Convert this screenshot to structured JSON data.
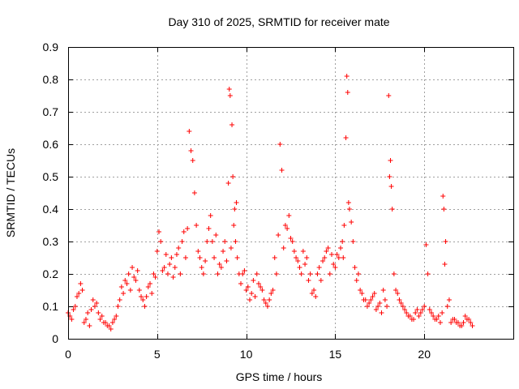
{
  "chart_data": {
    "type": "scatter",
    "title": "Day 310 of 2025, SRMTID for receiver mate",
    "xlabel": "GPS time / hours",
    "ylabel": "SRMTID / TECUs",
    "xlim": [
      0,
      25
    ],
    "ylim": [
      0,
      0.9
    ],
    "xticks": [
      0,
      5,
      10,
      15,
      20
    ],
    "xtick_labels": [
      "0",
      "5",
      "10",
      "15",
      "20"
    ],
    "yticks": [
      0,
      0.1,
      0.2,
      0.3,
      0.4,
      0.5,
      0.6,
      0.7,
      0.8,
      0.9
    ],
    "ytick_labels": [
      "0",
      "0.1",
      "0.2",
      "0.3",
      "0.4",
      "0.5",
      "0.6",
      "0.7",
      "0.8",
      "0.9"
    ],
    "grid": true,
    "marker": "+",
    "color": "#ff0000",
    "series": [
      {
        "name": "SRMTID",
        "x": [
          0.0,
          0.2,
          0.4,
          0.6,
          0.7,
          0.9,
          1.0,
          1.2,
          1.4,
          1.5,
          1.7,
          1.9,
          2.0,
          2.2,
          2.4,
          2.6,
          2.8,
          3.0,
          3.2,
          3.4,
          3.6,
          3.8,
          4.0,
          4.2,
          4.4,
          4.6,
          4.8,
          5.0,
          5.1,
          5.2,
          5.4,
          5.6,
          5.8,
          6.0,
          6.2,
          6.4,
          6.6,
          6.8,
          6.9,
          7.0,
          7.1,
          7.2,
          7.4,
          7.6,
          7.8,
          8.0,
          8.2,
          8.4,
          8.6,
          8.8,
          9.0,
          9.05,
          9.1,
          9.2,
          9.3,
          9.4,
          9.5,
          9.6,
          9.8,
          10.0,
          10.2,
          10.4,
          10.6,
          10.8,
          11.0,
          11.2,
          11.4,
          11.6,
          11.8,
          11.9,
          12.0,
          12.2,
          12.4,
          12.6,
          12.8,
          13.0,
          13.2,
          13.4,
          13.6,
          13.8,
          14.0,
          14.2,
          14.4,
          14.6,
          14.8,
          15.0,
          15.2,
          15.4,
          15.5,
          15.6,
          15.65,
          15.7,
          15.8,
          16.0,
          16.2,
          16.4,
          16.6,
          16.8,
          17.0,
          17.2,
          17.4,
          17.6,
          17.8,
          17.9,
          18.0,
          18.1,
          18.2,
          18.4,
          18.6,
          18.8,
          19.0,
          19.2,
          19.4,
          19.6,
          19.8,
          20.0,
          20.1,
          20.2,
          20.4,
          20.6,
          20.8,
          21.0,
          21.05,
          21.1,
          21.2,
          21.4,
          21.6,
          21.8,
          22.0,
          22.2,
          22.4,
          22.6,
          22.7,
          0.1,
          0.3,
          0.5,
          0.8,
          1.1,
          1.3,
          1.6,
          1.8,
          2.1,
          2.3,
          2.5,
          2.7,
          2.9,
          3.1,
          3.3,
          3.5,
          3.7,
          3.9,
          4.1,
          4.3,
          4.5,
          4.7,
          4.9,
          5.3,
          5.5,
          5.7,
          5.9,
          6.1,
          6.3,
          6.5,
          6.7,
          7.3,
          7.5,
          7.7,
          7.9,
          8.1,
          8.3,
          8.5,
          8.7,
          8.9,
          9.15,
          9.25,
          9.35,
          9.45,
          9.7,
          9.9,
          10.1,
          10.3,
          10.5,
          10.7,
          10.9,
          11.1,
          11.3,
          11.5,
          11.7,
          12.1,
          12.3,
          12.5,
          12.7,
          12.9,
          13.1,
          13.3,
          13.5,
          13.7,
          13.9,
          14.1,
          14.3,
          14.5,
          14.7,
          14.9,
          15.1,
          15.3,
          15.45,
          15.75,
          15.9,
          16.1,
          16.3,
          16.5,
          16.7,
          16.9,
          17.1,
          17.3,
          17.5,
          17.7,
          18.05,
          18.15,
          18.3,
          18.5,
          18.7,
          18.9,
          19.1,
          19.3,
          19.5,
          19.7,
          19.9,
          20.3,
          20.5,
          20.7,
          20.9,
          21.15,
          21.3,
          21.5,
          21.7,
          21.9,
          22.1,
          22.3,
          22.5
        ],
        "y": [
          0.08,
          0.06,
          0.1,
          0.14,
          0.17,
          0.05,
          0.06,
          0.04,
          0.12,
          0.1,
          0.08,
          0.07,
          0.05,
          0.04,
          0.03,
          0.06,
          0.1,
          0.16,
          0.18,
          0.2,
          0.22,
          0.18,
          0.15,
          0.12,
          0.13,
          0.17,
          0.2,
          0.27,
          0.33,
          0.3,
          0.22,
          0.2,
          0.25,
          0.22,
          0.28,
          0.3,
          0.25,
          0.64,
          0.58,
          0.55,
          0.45,
          0.35,
          0.25,
          0.2,
          0.3,
          0.38,
          0.25,
          0.2,
          0.22,
          0.3,
          0.48,
          0.77,
          0.75,
          0.66,
          0.35,
          0.3,
          0.25,
          0.2,
          0.2,
          0.15,
          0.12,
          0.18,
          0.2,
          0.16,
          0.12,
          0.1,
          0.14,
          0.25,
          0.32,
          0.6,
          0.52,
          0.35,
          0.38,
          0.3,
          0.25,
          0.22,
          0.27,
          0.25,
          0.2,
          0.15,
          0.2,
          0.18,
          0.25,
          0.28,
          0.26,
          0.22,
          0.25,
          0.3,
          0.35,
          0.62,
          0.81,
          0.76,
          0.4,
          0.3,
          0.18,
          0.15,
          0.12,
          0.1,
          0.12,
          0.14,
          0.1,
          0.08,
          0.12,
          0.1,
          0.75,
          0.55,
          0.4,
          0.15,
          0.12,
          0.1,
          0.08,
          0.07,
          0.06,
          0.09,
          0.08,
          0.1,
          0.29,
          0.2,
          0.08,
          0.06,
          0.07,
          0.08,
          0.44,
          0.4,
          0.3,
          0.12,
          0.06,
          0.05,
          0.04,
          0.05,
          0.06,
          0.05,
          0.04,
          0.07,
          0.09,
          0.13,
          0.15,
          0.08,
          0.09,
          0.11,
          0.06,
          0.05,
          0.04,
          0.05,
          0.07,
          0.12,
          0.14,
          0.17,
          0.15,
          0.19,
          0.21,
          0.13,
          0.1,
          0.16,
          0.14,
          0.19,
          0.21,
          0.26,
          0.23,
          0.19,
          0.26,
          0.2,
          0.33,
          0.34,
          0.27,
          0.22,
          0.24,
          0.34,
          0.3,
          0.32,
          0.23,
          0.27,
          0.24,
          0.28,
          0.5,
          0.4,
          0.42,
          0.17,
          0.21,
          0.16,
          0.14,
          0.13,
          0.17,
          0.15,
          0.11,
          0.12,
          0.15,
          0.2,
          0.28,
          0.34,
          0.31,
          0.27,
          0.24,
          0.2,
          0.23,
          0.18,
          0.14,
          0.13,
          0.22,
          0.24,
          0.27,
          0.2,
          0.23,
          0.26,
          0.28,
          0.25,
          0.42,
          0.36,
          0.22,
          0.2,
          0.14,
          0.12,
          0.11,
          0.13,
          0.09,
          0.11,
          0.15,
          0.5,
          0.47,
          0.2,
          0.14,
          0.11,
          0.09,
          0.07,
          0.06,
          0.08,
          0.07,
          0.09,
          0.09,
          0.07,
          0.06,
          0.05,
          0.23,
          0.1,
          0.05,
          0.06,
          0.05,
          0.04,
          0.07,
          0.06
        ]
      }
    ]
  }
}
